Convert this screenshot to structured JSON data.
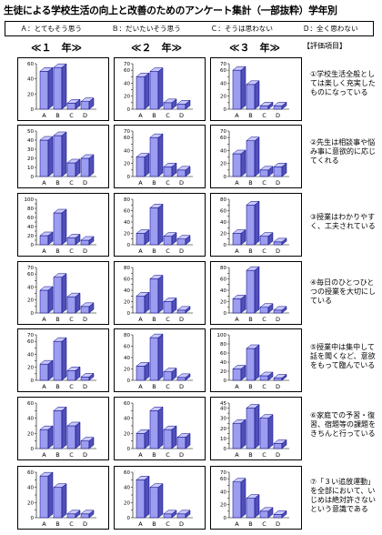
{
  "title": "生徒による学校生活の向上と改善のためのアンケート集計（一部抜粋）学年別",
  "legend": [
    "Ａ：とてもそう思う",
    "Ｂ：だいたいそう思う",
    "Ｃ：そうは思わない",
    "Ｄ：全く思わない"
  ],
  "grade_headers": [
    "≪１　年≫",
    "≪２　年≫",
    "≪３　年≫"
  ],
  "evaluation_header": "【評価項目】",
  "items": [
    "①学校生活全般としては楽しく充実したものになっている",
    "②先生は相談事や悩み事に意欲的に応じてくれる",
    "③授業はわかりやすく、工夫されている",
    "④毎日のひとつひとつの授業を大切にしている",
    "⑤授業中は集中して話を聞くなど、意欲をもって臨んでいる",
    "⑥家庭での予習・復習、宿題等の課題をきちんと行っている",
    "⑦「３い追放運動」を全部において、いじめは絶対許さないという意識である"
  ],
  "colors": {
    "bar_front": "#9c9cf0",
    "bar_side": "#5050b8",
    "bar_top": "#c8c8ff",
    "outline": "#000080"
  },
  "chart_data": [
    {
      "type": "bar",
      "item": 1,
      "grade": 1,
      "categories": [
        "A",
        "B",
        "C",
        "D"
      ],
      "values": [
        50,
        55,
        8,
        10
      ],
      "ylim": [
        0,
        60
      ],
      "yticks": [
        0,
        20,
        40,
        60
      ]
    },
    {
      "type": "bar",
      "item": 1,
      "grade": 2,
      "categories": [
        "A",
        "B",
        "C",
        "D"
      ],
      "values": [
        50,
        58,
        10,
        8
      ],
      "ylim": [
        0,
        70
      ],
      "yticks": [
        0,
        10,
        20,
        30,
        40,
        50,
        60,
        70
      ]
    },
    {
      "type": "bar",
      "item": 1,
      "grade": 3,
      "categories": [
        "A",
        "B",
        "C",
        "D"
      ],
      "values": [
        60,
        38,
        5,
        5
      ],
      "ylim": [
        0,
        70
      ],
      "yticks": [
        0,
        10,
        20,
        30,
        40,
        50,
        60,
        70
      ]
    },
    {
      "type": "bar",
      "item": 2,
      "grade": 1,
      "categories": [
        "A",
        "B",
        "C",
        "D"
      ],
      "values": [
        40,
        45,
        15,
        20
      ],
      "ylim": [
        0,
        50
      ],
      "yticks": [
        0,
        10,
        20,
        30,
        40,
        50
      ]
    },
    {
      "type": "bar",
      "item": 2,
      "grade": 2,
      "categories": [
        "A",
        "B",
        "C",
        "D"
      ],
      "values": [
        30,
        60,
        15,
        10
      ],
      "ylim": [
        0,
        70
      ],
      "yticks": [
        0,
        10,
        20,
        30,
        40,
        50,
        60,
        70
      ]
    },
    {
      "type": "bar",
      "item": 2,
      "grade": 3,
      "categories": [
        "A",
        "B",
        "C",
        "D"
      ],
      "values": [
        35,
        55,
        10,
        15
      ],
      "ylim": [
        0,
        70
      ],
      "yticks": [
        0,
        10,
        20,
        30,
        40,
        50,
        60,
        70
      ]
    },
    {
      "type": "bar",
      "item": 3,
      "grade": 1,
      "categories": [
        "A",
        "B",
        "C",
        "D"
      ],
      "values": [
        20,
        70,
        15,
        10
      ],
      "ylim": [
        0,
        100
      ],
      "yticks": [
        0,
        10,
        20,
        30,
        40,
        50,
        60,
        70,
        80,
        90,
        100
      ]
    },
    {
      "type": "bar",
      "item": 3,
      "grade": 2,
      "categories": [
        "A",
        "B",
        "C",
        "D"
      ],
      "values": [
        20,
        65,
        15,
        10
      ],
      "ylim": [
        0,
        80
      ],
      "yticks": [
        0,
        10,
        20,
        30,
        40,
        50,
        60,
        70,
        80
      ]
    },
    {
      "type": "bar",
      "item": 3,
      "grade": 3,
      "categories": [
        "A",
        "B",
        "C",
        "D"
      ],
      "values": [
        20,
        70,
        15,
        5
      ],
      "ylim": [
        0,
        80
      ],
      "yticks": [
        0,
        10,
        20,
        30,
        40,
        50,
        60,
        70,
        80
      ]
    },
    {
      "type": "bar",
      "item": 4,
      "grade": 1,
      "categories": [
        "A",
        "B",
        "C",
        "D"
      ],
      "values": [
        35,
        55,
        25,
        10
      ],
      "ylim": [
        0,
        70
      ],
      "yticks": [
        0,
        10,
        20,
        30,
        40,
        50,
        60,
        70
      ]
    },
    {
      "type": "bar",
      "item": 4,
      "grade": 2,
      "categories": [
        "A",
        "B",
        "C",
        "D"
      ],
      "values": [
        30,
        60,
        20,
        5
      ],
      "ylim": [
        0,
        80
      ],
      "yticks": [
        0,
        10,
        20,
        30,
        40,
        50,
        60,
        70,
        80
      ]
    },
    {
      "type": "bar",
      "item": 4,
      "grade": 3,
      "categories": [
        "A",
        "B",
        "C",
        "D"
      ],
      "values": [
        25,
        75,
        10,
        5
      ],
      "ylim": [
        0,
        80
      ],
      "yticks": [
        0,
        10,
        20,
        30,
        40,
        50,
        60,
        70,
        80
      ]
    },
    {
      "type": "bar",
      "item": 5,
      "grade": 1,
      "categories": [
        "A",
        "B",
        "C",
        "D"
      ],
      "values": [
        25,
        60,
        15,
        5
      ],
      "ylim": [
        0,
        70
      ],
      "yticks": [
        0,
        10,
        20,
        30,
        40,
        50,
        60,
        70
      ]
    },
    {
      "type": "bar",
      "item": 5,
      "grade": 2,
      "categories": [
        "A",
        "B",
        "C",
        "D"
      ],
      "values": [
        25,
        75,
        15,
        5
      ],
      "ylim": [
        0,
        80
      ],
      "yticks": [
        0,
        20,
        40,
        60,
        80
      ]
    },
    {
      "type": "bar",
      "item": 5,
      "grade": 3,
      "categories": [
        "A",
        "B",
        "C",
        "D"
      ],
      "values": [
        25,
        70,
        10,
        5
      ],
      "ylim": [
        0,
        100
      ],
      "yticks": [
        0,
        20,
        40,
        60,
        80,
        100
      ]
    },
    {
      "type": "bar",
      "item": 6,
      "grade": 1,
      "categories": [
        "A",
        "B",
        "C",
        "D"
      ],
      "values": [
        25,
        50,
        30,
        10
      ],
      "ylim": [
        0,
        60
      ],
      "yticks": [
        0,
        10,
        20,
        30,
        40,
        50,
        60
      ]
    },
    {
      "type": "bar",
      "item": 6,
      "grade": 2,
      "categories": [
        "A",
        "B",
        "C",
        "D"
      ],
      "values": [
        20,
        50,
        25,
        15
      ],
      "ylim": [
        0,
        60
      ],
      "yticks": [
        0,
        10,
        20,
        30,
        40,
        50,
        60
      ]
    },
    {
      "type": "bar",
      "item": 6,
      "grade": 3,
      "categories": [
        "A",
        "B",
        "C",
        "D"
      ],
      "values": [
        25,
        40,
        30,
        5
      ],
      "ylim": [
        0,
        45
      ],
      "yticks": [
        0,
        5,
        10,
        15,
        20,
        25,
        30,
        35,
        40,
        45
      ]
    },
    {
      "type": "bar",
      "item": 7,
      "grade": 1,
      "categories": [
        "A",
        "B",
        "C",
        "D"
      ],
      "values": [
        55,
        40,
        5,
        5
      ],
      "ylim": [
        0,
        60
      ],
      "yticks": [
        0,
        10,
        20,
        30,
        40,
        50,
        60
      ]
    },
    {
      "type": "bar",
      "item": 7,
      "grade": 2,
      "categories": [
        "A",
        "B",
        "C",
        "D"
      ],
      "values": [
        50,
        40,
        5,
        5
      ],
      "ylim": [
        0,
        60
      ],
      "yticks": [
        0,
        10,
        20,
        30,
        40,
        50,
        60
      ]
    },
    {
      "type": "bar",
      "item": 7,
      "grade": 3,
      "categories": [
        "A",
        "B",
        "C",
        "D"
      ],
      "values": [
        55,
        30,
        10,
        5
      ],
      "ylim": [
        0,
        70
      ],
      "yticks": [
        0,
        10,
        20,
        30,
        40,
        50,
        60,
        70
      ]
    }
  ]
}
